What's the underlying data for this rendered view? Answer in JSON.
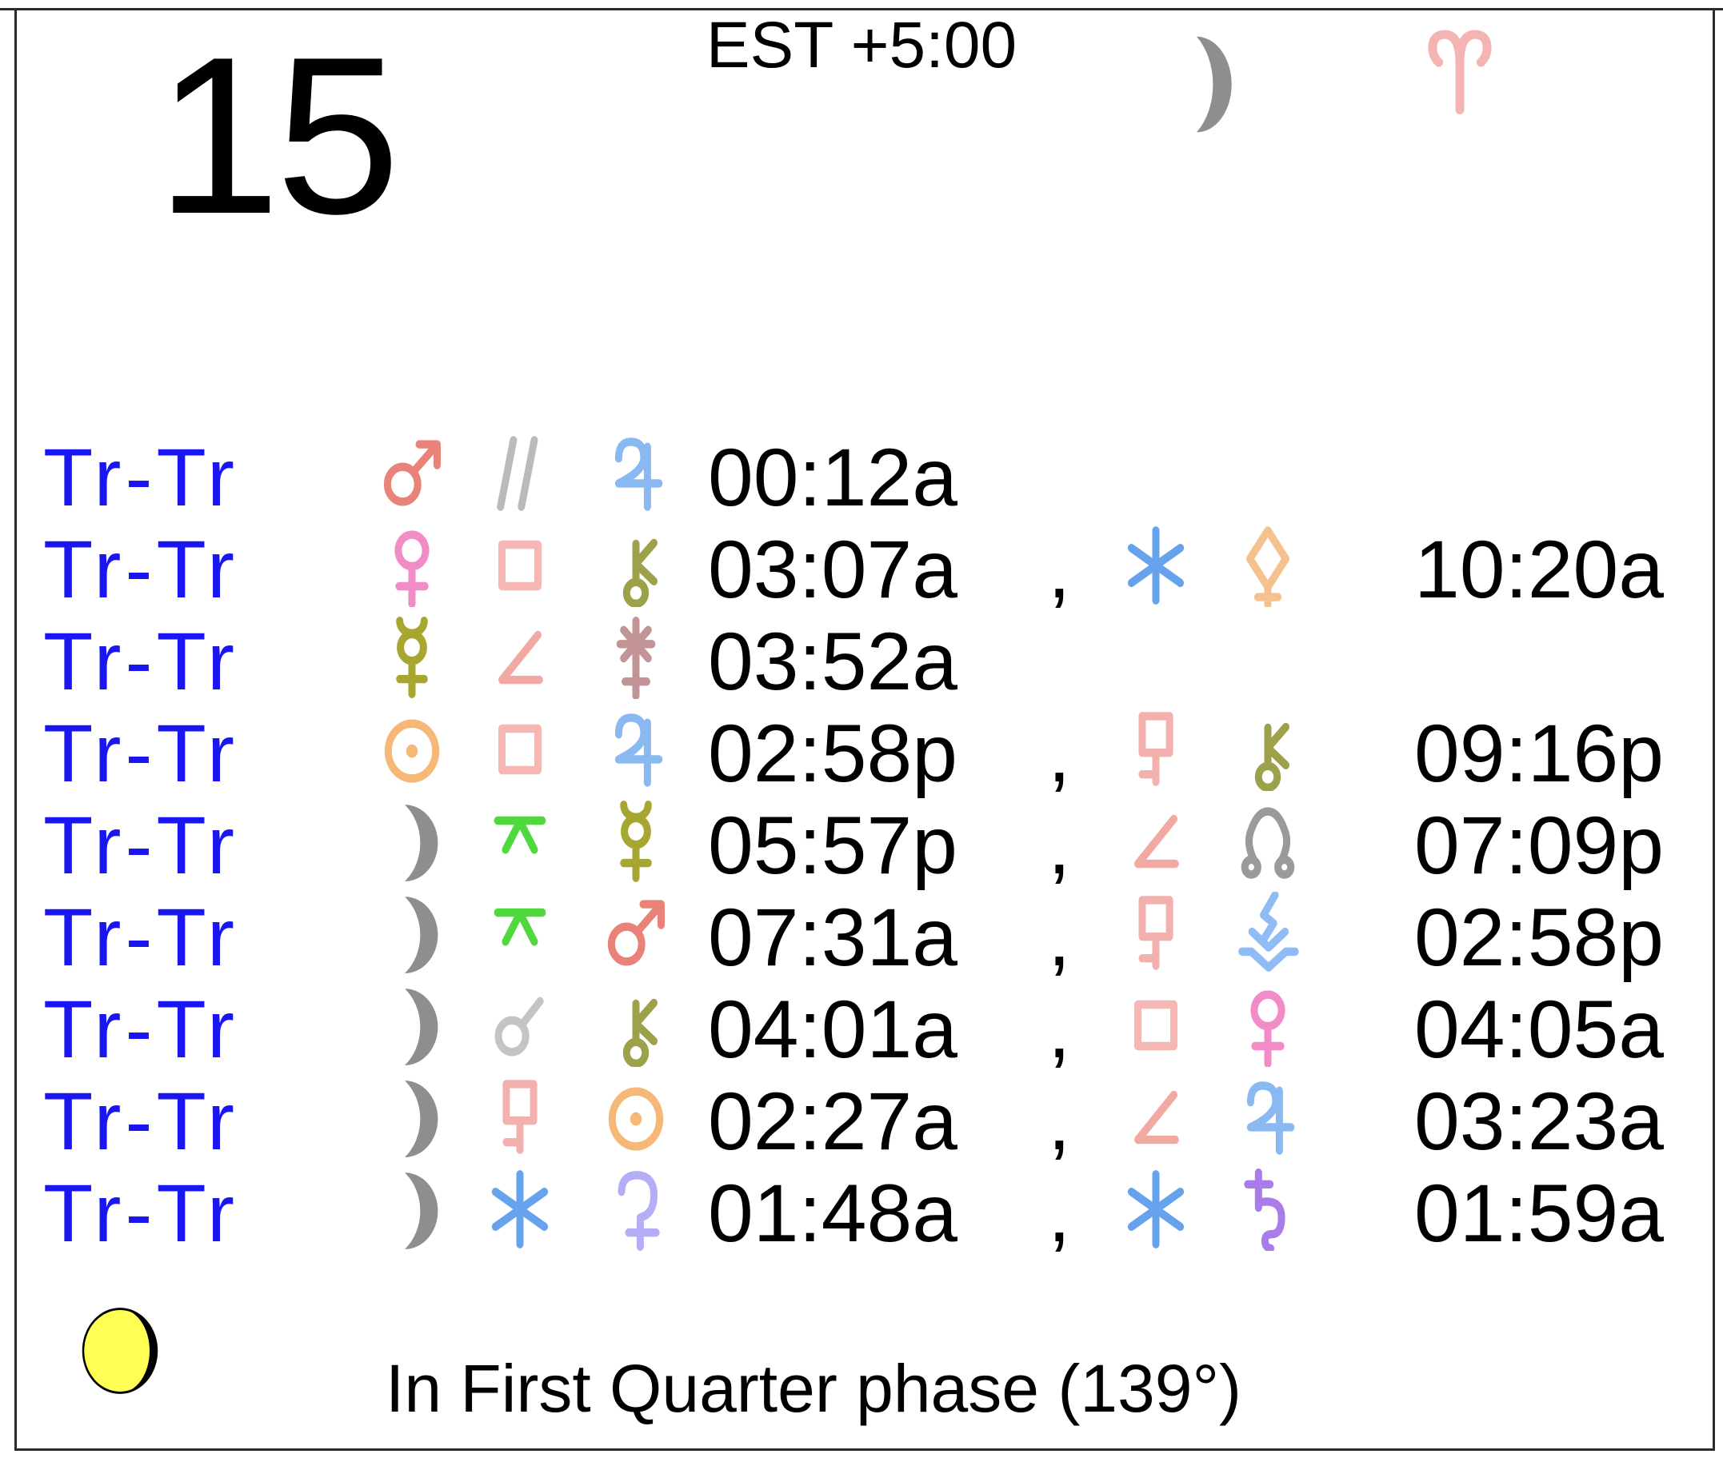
{
  "header": {
    "day": "15",
    "timezone": "EST +5:00",
    "moon_icon": "moon",
    "sign_icon": "aries"
  },
  "separator": ",",
  "rows": [
    {
      "label": "Tr-Tr",
      "parts": [
        {
          "icons": [
            "mars",
            "parallel",
            "jupiter"
          ],
          "time": "00:12a"
        }
      ]
    },
    {
      "label": "Tr-Tr",
      "parts": [
        {
          "icons": [
            "venus",
            "square",
            "chiron"
          ],
          "time": "03:07a"
        },
        {
          "icons": [
            "sextile",
            "pallas"
          ],
          "time": "10:20a"
        }
      ]
    },
    {
      "label": "Tr-Tr",
      "parts": [
        {
          "icons": [
            "mercury",
            "semisquare",
            "juno"
          ],
          "time": "03:52a"
        }
      ]
    },
    {
      "label": "Tr-Tr",
      "parts": [
        {
          "icons": [
            "sun",
            "square",
            "jupiter"
          ],
          "time": "02:58p"
        },
        {
          "icons": [
            "sesquiquadrate",
            "chiron"
          ],
          "time": "09:16p"
        }
      ]
    },
    {
      "label": "Tr-Tr",
      "parts": [
        {
          "icons": [
            "moon",
            "quincunx",
            "mercury"
          ],
          "time": "05:57p"
        },
        {
          "icons": [
            "semisquare",
            "north-node"
          ],
          "time": "07:09p"
        }
      ]
    },
    {
      "label": "Tr-Tr",
      "parts": [
        {
          "icons": [
            "moon",
            "quincunx",
            "mars"
          ],
          "time": "07:31a"
        },
        {
          "icons": [
            "sesquiquadrate",
            "vesta"
          ],
          "time": "02:58p"
        }
      ]
    },
    {
      "label": "Tr-Tr",
      "parts": [
        {
          "icons": [
            "moon",
            "conjunction",
            "chiron"
          ],
          "time": "04:01a"
        },
        {
          "icons": [
            "square",
            "venus"
          ],
          "time": "04:05a"
        }
      ]
    },
    {
      "label": "Tr-Tr",
      "parts": [
        {
          "icons": [
            "moon",
            "sesquiquadrate",
            "sun"
          ],
          "time": "02:27a"
        },
        {
          "icons": [
            "semisquare",
            "jupiter"
          ],
          "time": "03:23a"
        }
      ]
    },
    {
      "label": "Tr-Tr",
      "parts": [
        {
          "icons": [
            "moon",
            "sextile",
            "ceres"
          ],
          "time": "01:48a"
        },
        {
          "icons": [
            "sextile",
            "saturn"
          ],
          "time": "01:59a"
        }
      ]
    }
  ],
  "footer": {
    "phase_text": "In First Quarter phase (139°)",
    "phase_degrees": "139",
    "phase_icon": "phase"
  },
  "colors": {
    "trtr": "#1a16f2",
    "time": "#000000",
    "border": "#2a2a2a",
    "sun": "#f5b877",
    "moon": "#8e8e8e",
    "mercury": "#a6a630",
    "venus": "#f28cc8",
    "mars": "#e9837a",
    "jupiter": "#8ab9f2",
    "saturn": "#a87ceb",
    "chiron": "#9da24a",
    "ceres": "#b3aef5",
    "pallas": "#f5c18f",
    "juno": "#c39496",
    "vesta": "#8fbcf5",
    "north-node": "#9a9a9a",
    "parallel": "#bababa",
    "conjunction": "#c4c4c4",
    "square": "#f4b7b3",
    "semisquare": "#f2a9a4",
    "sesquiquadrate": "#f3b1ad",
    "quincunx": "#50d93c",
    "sextile": "#66a3ec",
    "aries": "#f4b4b4",
    "phase": "#ffff55"
  }
}
